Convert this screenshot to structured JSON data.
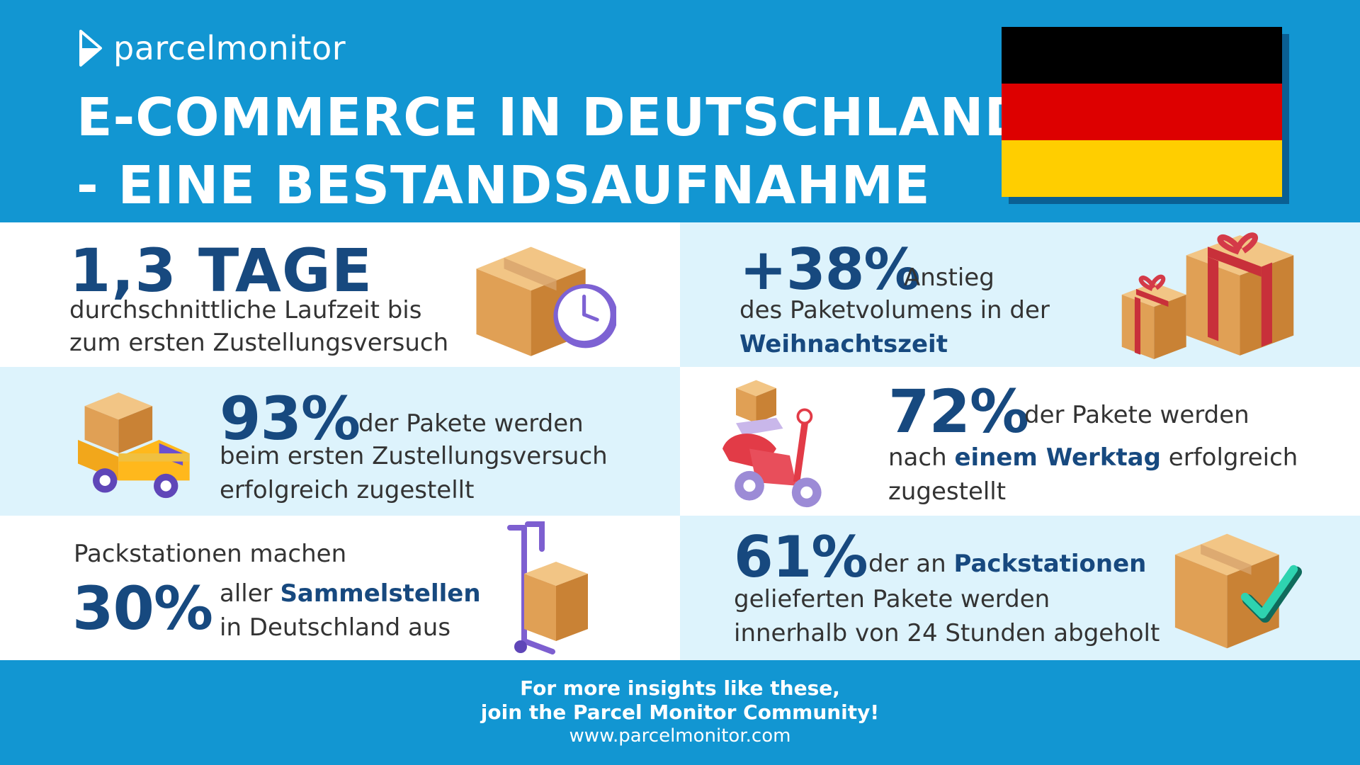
{
  "header": {
    "logo_text": "parcelmonitor",
    "title_line1": "E-COMMERCE IN DEUTSCHLAND",
    "title_line2": "- EINE BESTANDSAUFNAHME"
  },
  "colors": {
    "brand_blue": "#1296d2",
    "stat_navy": "#17497f",
    "flag_black": "#000000",
    "flag_red": "#dd0000",
    "flag_gold": "#ffce00"
  },
  "stats": {
    "transit": {
      "value": "1,3 TAGE",
      "line1": "durchschnittliche Laufzeit bis",
      "line2": "zum ersten Zustellungsversuch",
      "icon": "box-clock-icon"
    },
    "christmas": {
      "value": "+38%",
      "text1": "Anstieg",
      "line2": "des Paketvolumens in der",
      "highlight": "Weihnachtszeit",
      "icon": "gift-boxes-icon"
    },
    "first_attempt": {
      "value": "93%",
      "text1": "der Pakete werden",
      "line2": "beim ersten Zustellungsversuch",
      "line3": "erfolgreich zugestellt",
      "icon": "delivery-truck-icon"
    },
    "one_day": {
      "value": "72%",
      "text1": "der Pakete werden",
      "line2_pre": "nach",
      "highlight": "einem Werktag",
      "line2_post": "erfolgreich",
      "line3": "zugestellt",
      "icon": "scooter-icon"
    },
    "packstation_share": {
      "intro": "Packstationen machen",
      "value": "30%",
      "line1_pre": "aller",
      "highlight": "Sammelstellen",
      "line2": "in Deutschland aus",
      "icon": "hand-trolley-icon"
    },
    "pickup": {
      "value": "61%",
      "text_pre": "der an",
      "highlight": "Packstationen",
      "line2": "gelieferten Pakete werden",
      "line3": "innerhalb von 24 Stunden abgeholt",
      "icon": "box-check-icon"
    }
  },
  "footer": {
    "line1": "For more insights like these,",
    "line2": "join the Parcel Monitor Community!",
    "url": "www.parcelmonitor.com"
  }
}
